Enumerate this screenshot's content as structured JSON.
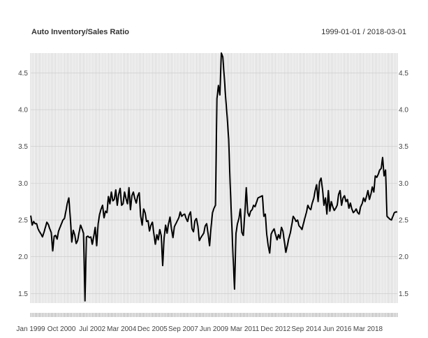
{
  "chart_data": {
    "type": "line",
    "title": "Auto Inventory/Sales Ratio",
    "date_range": "1999-01-01 / 2018-03-01",
    "xlabel": "",
    "ylabel": "",
    "ylim": [
      1.37,
      4.77
    ],
    "y_ticks": [
      "1.5",
      "2.0",
      "2.5",
      "3.0",
      "3.5",
      "4.0",
      "4.5"
    ],
    "x_ticks": [
      {
        "label": "Jan 1999",
        "date": "1999-01-01"
      },
      {
        "label": "Oct 2000",
        "date": "2000-10-01"
      },
      {
        "label": "Jul 2002",
        "date": "2002-07-01"
      },
      {
        "label": "Mar 2004",
        "date": "2004-03-01"
      },
      {
        "label": "Dec 2005",
        "date": "2005-12-01"
      },
      {
        "label": "Sep 2007",
        "date": "2007-09-01"
      },
      {
        "label": "Jun 2009",
        "date": "2009-06-01"
      },
      {
        "label": "Mar 2011",
        "date": "2011-03-01"
      },
      {
        "label": "Dec 2012",
        "date": "2012-12-01"
      },
      {
        "label": "Sep 2014",
        "date": "2014-09-01"
      },
      {
        "label": "Jun 2016",
        "date": "2016-06-01"
      },
      {
        "label": "Mar 2018",
        "date": "2018-03-01"
      }
    ],
    "grid": true,
    "line_color": "#000000",
    "series": [
      {
        "frequency": "monthly",
        "start": "1999-01",
        "values": [
          2.56,
          2.43,
          2.48,
          2.45,
          2.45,
          2.38,
          2.34,
          2.31,
          2.27,
          2.33,
          2.4,
          2.47,
          2.44,
          2.38,
          2.33,
          2.08,
          2.28,
          2.29,
          2.24,
          2.35,
          2.4,
          2.45,
          2.5,
          2.52,
          2.62,
          2.73,
          2.8,
          2.53,
          2.2,
          2.36,
          2.3,
          2.18,
          2.22,
          2.33,
          2.43,
          2.38,
          2.32,
          1.4,
          2.27,
          2.28,
          2.26,
          2.27,
          2.17,
          2.28,
          2.4,
          2.15,
          2.45,
          2.58,
          2.65,
          2.7,
          2.53,
          2.62,
          2.6,
          2.82,
          2.72,
          2.88,
          2.76,
          2.78,
          2.91,
          2.7,
          2.85,
          2.93,
          2.7,
          2.72,
          2.88,
          2.79,
          2.72,
          2.94,
          2.64,
          2.83,
          2.88,
          2.79,
          2.73,
          2.83,
          2.87,
          2.55,
          2.43,
          2.65,
          2.6,
          2.48,
          2.49,
          2.35,
          2.43,
          2.47,
          2.31,
          2.17,
          2.3,
          2.23,
          2.37,
          2.29,
          1.88,
          2.26,
          2.43,
          2.32,
          2.45,
          2.54,
          2.38,
          2.26,
          2.41,
          2.45,
          2.49,
          2.53,
          2.61,
          2.55,
          2.57,
          2.58,
          2.52,
          2.48,
          2.57,
          2.61,
          2.38,
          2.34,
          2.49,
          2.52,
          2.42,
          2.22,
          2.26,
          2.29,
          2.32,
          2.42,
          2.45,
          2.31,
          2.15,
          2.4,
          2.6,
          2.66,
          2.7,
          4.15,
          4.33,
          4.2,
          4.77,
          4.72,
          4.45,
          4.15,
          3.9,
          3.6,
          3.0,
          2.5,
          2.0,
          1.56,
          2.32,
          2.45,
          2.52,
          2.65,
          2.33,
          2.29,
          2.59,
          2.94,
          2.6,
          2.55,
          2.62,
          2.64,
          2.7,
          2.68,
          2.74,
          2.8,
          2.81,
          2.82,
          2.83,
          2.55,
          2.58,
          2.3,
          2.15,
          2.05,
          2.31,
          2.35,
          2.38,
          2.3,
          2.23,
          2.3,
          2.25,
          2.4,
          2.35,
          2.21,
          2.06,
          2.15,
          2.25,
          2.32,
          2.43,
          2.55,
          2.52,
          2.48,
          2.5,
          2.42,
          2.4,
          2.37,
          2.45,
          2.53,
          2.6,
          2.7,
          2.66,
          2.64,
          2.73,
          2.79,
          2.9,
          2.98,
          2.75,
          3.02,
          3.07,
          2.92,
          2.7,
          2.8,
          2.58,
          2.9,
          2.62,
          2.75,
          2.68,
          2.63,
          2.66,
          2.7,
          2.85,
          2.9,
          2.7,
          2.8,
          2.83,
          2.75,
          2.78,
          2.66,
          2.73,
          2.65,
          2.6,
          2.62,
          2.65,
          2.6,
          2.58,
          2.68,
          2.72,
          2.8,
          2.75,
          2.82,
          2.9,
          2.78,
          2.85,
          2.95,
          2.88,
          3.1,
          3.08,
          3.12,
          3.18,
          3.2,
          3.35,
          3.1,
          3.18,
          2.55,
          2.53,
          2.51,
          2.5,
          2.55,
          2.6,
          2.61,
          2.61
        ]
      }
    ]
  }
}
